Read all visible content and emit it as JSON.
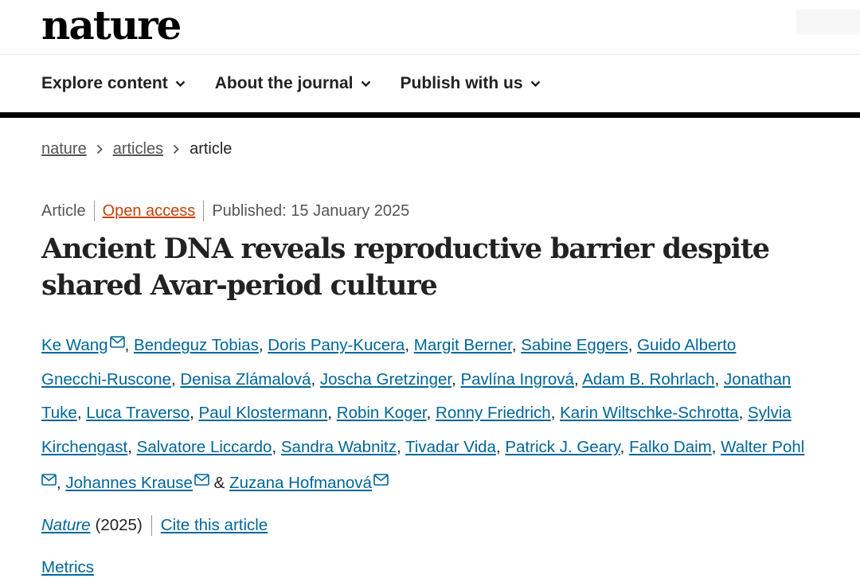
{
  "header": {
    "logo": "nature",
    "nav": [
      {
        "label": "Explore content"
      },
      {
        "label": "About the journal"
      },
      {
        "label": "Publish with us"
      }
    ]
  },
  "breadcrumb": {
    "items": [
      "nature",
      "articles"
    ],
    "current": "article"
  },
  "article": {
    "type": "Article",
    "access": "Open access",
    "published": "Published: 15 January 2025",
    "title_line1": "Ancient DNA reveals reproductive barrier despite",
    "title_line2": "shared Avar-period culture",
    "authors_lines": [
      [
        {
          "text": "Ke Wang",
          "mail": true
        },
        {
          "sep": ", "
        },
        {
          "text": "Bendeguz Tobias"
        },
        {
          "sep": ", "
        },
        {
          "text": "Doris Pany-Kucera"
        },
        {
          "sep": ", "
        },
        {
          "text": "Margit Berner"
        },
        {
          "sep": ", "
        },
        {
          "text": "Sabine Eggers"
        },
        {
          "sep": ", "
        },
        {
          "text": "Guido Alberto"
        }
      ],
      [
        {
          "text": "Gnecchi-Ruscone"
        },
        {
          "sep": ", "
        },
        {
          "text": "Denisa Zlámalová"
        },
        {
          "sep": ", "
        },
        {
          "text": "Joscha Gretzinger"
        },
        {
          "sep": ", "
        },
        {
          "text": "Pavlína Ingrová"
        },
        {
          "sep": ", "
        },
        {
          "text": "Adam B. Rohrlach"
        },
        {
          "sep": ", "
        },
        {
          "text": "Jonathan"
        }
      ],
      [
        {
          "text": "Tuke"
        },
        {
          "sep": ", "
        },
        {
          "text": "Luca Traverso"
        },
        {
          "sep": ", "
        },
        {
          "text": "Paul Klostermann"
        },
        {
          "sep": ", "
        },
        {
          "text": "Robin Koger"
        },
        {
          "sep": ", "
        },
        {
          "text": "Ronny Friedrich"
        },
        {
          "sep": ", "
        },
        {
          "text": "Karin Wiltschke-Schrotta"
        },
        {
          "sep": ", "
        },
        {
          "text": "Sylvia"
        }
      ],
      [
        {
          "text": "Kirchengast"
        },
        {
          "sep": ", "
        },
        {
          "text": "Salvatore Liccardo"
        },
        {
          "sep": ", "
        },
        {
          "text": "Sandra Wabnitz"
        },
        {
          "sep": ", "
        },
        {
          "text": "Tivadar Vida"
        },
        {
          "sep": ", "
        },
        {
          "text": "Patrick J. Geary"
        },
        {
          "sep": ", "
        },
        {
          "text": "Falko Daim"
        },
        {
          "sep": ", "
        },
        {
          "text": "Walter Pohl"
        }
      ],
      [
        {
          "mailOnly": true
        },
        {
          "sep": ", "
        },
        {
          "text": "Johannes Krause",
          "mail": true
        },
        {
          "sep": " & "
        },
        {
          "text": "Zuzana Hofmanová",
          "mail": true
        }
      ]
    ],
    "journal": "Nature",
    "year": "(2025)",
    "cite": "Cite this article",
    "metrics": "Metrics"
  }
}
